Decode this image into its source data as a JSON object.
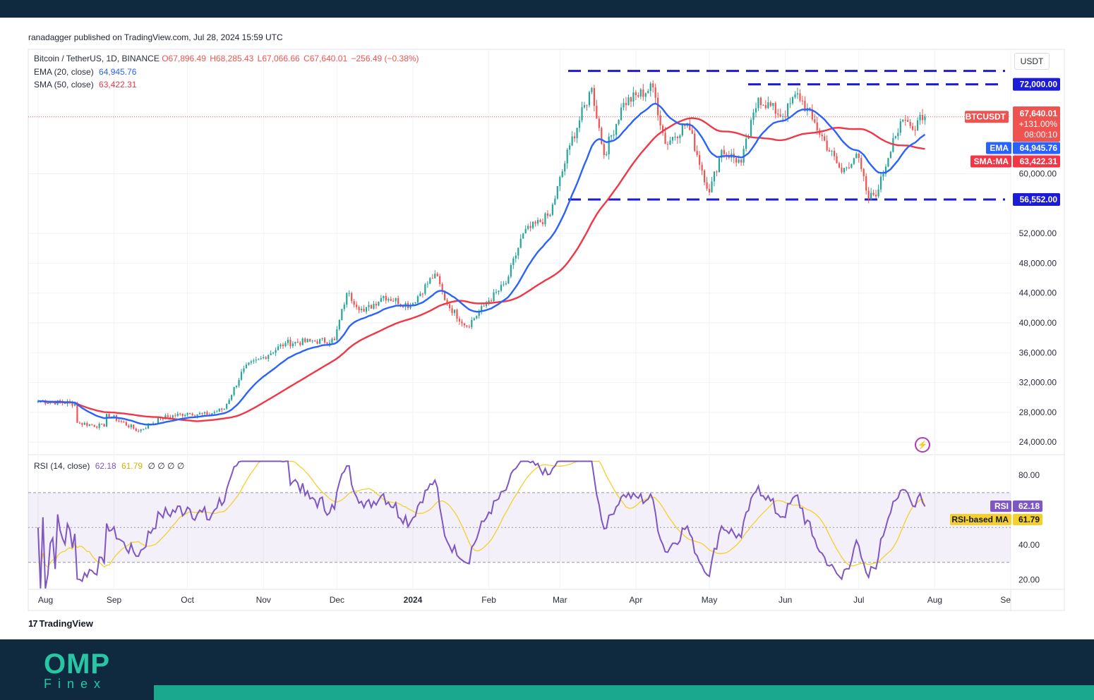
{
  "header": {
    "published": "ranadagger published on TradingView.com, Jul 28, 2024 15:59 UTC"
  },
  "legend": {
    "symbol": "Bitcoin / TetherUS, 1D, BINANCE",
    "open": "O67,896.49",
    "high": "H68,285.43",
    "low": "L67,066.66",
    "close": "C67,640.01",
    "change": "−256.49 (−0.38%)",
    "ema_label": "EMA (20, close)",
    "ema_value": "64,945.76",
    "sma_label": "SMA (50, close)",
    "sma_value": "63,422.31",
    "rsi_label": "RSI (14, close)",
    "rsi_value": "62.18",
    "rsi_ma_value": "61.79",
    "rsi_extra": "∅ ∅ ∅ ∅"
  },
  "price_axis": {
    "unit": "USDT",
    "symbol_tag": "BTCUSDT",
    "last_price": "67,640.01",
    "pct": "+131.00%",
    "countdown": "08:00:10",
    "ema_tag": "EMA",
    "ema_value": "64,945.76",
    "sma_tag": "SMA:MA",
    "sma_value": "63,422.31",
    "rsi_tag": "RSI",
    "rsi_value": "62.18",
    "rsi_ma_tag": "RSI-based MA",
    "rsi_ma_value": "61.79",
    "level_labels": [
      "72,000.00",
      "56,552.00"
    ]
  },
  "branding": {
    "tv": "TradingView",
    "tv_mark": "17",
    "brand": "OMP",
    "brand_sub": "Finex"
  },
  "colors": {
    "up": "#26a69a",
    "down": "#ef5350",
    "ema": "#2962ff",
    "sma": "#f23645",
    "rsi": "#7e57c2",
    "rsi_ma": "#f5d02a",
    "level": "#1b1bd8"
  },
  "chart_data": [
    {
      "type": "candlestick",
      "title": "Bitcoin / TetherUS, 1D, BINANCE",
      "x_tick_labels": [
        "Aug",
        "Sep",
        "Oct",
        "Nov",
        "Dec",
        "2024",
        "Feb",
        "Mar",
        "Apr",
        "May",
        "Jun",
        "Jul",
        "Aug",
        "Se"
      ],
      "y_tick_labels": [
        "60,000.00",
        "52,000.00",
        "48,000.00",
        "44,000.00",
        "40,000.00",
        "36,000.00",
        "32,000.00",
        "28,000.00",
        "24,000.00"
      ],
      "y_ticks": [
        60000,
        52000,
        48000,
        44000,
        40000,
        36000,
        32000,
        28000,
        24000
      ],
      "ylim": [
        22000,
        76000
      ],
      "grid": true,
      "horizontal_levels": [
        73800,
        72000,
        56552
      ],
      "close_anchors": [
        {
          "date": "2023-08-01",
          "close": 29500
        },
        {
          "date": "2023-08-16",
          "close": 29200
        },
        {
          "date": "2023-08-17",
          "close": 26600
        },
        {
          "date": "2023-08-28",
          "close": 26100
        },
        {
          "date": "2023-08-29",
          "close": 27800
        },
        {
          "date": "2023-09-11",
          "close": 25500
        },
        {
          "date": "2023-09-20",
          "close": 27200
        },
        {
          "date": "2023-10-01",
          "close": 27900
        },
        {
          "date": "2023-10-09",
          "close": 27700
        },
        {
          "date": "2023-10-16",
          "close": 28500
        },
        {
          "date": "2023-10-24",
          "close": 33900
        },
        {
          "date": "2023-11-01",
          "close": 35400
        },
        {
          "date": "2023-11-10",
          "close": 37300
        },
        {
          "date": "2023-11-20",
          "close": 37500
        },
        {
          "date": "2023-11-30",
          "close": 37700
        },
        {
          "date": "2023-12-05",
          "close": 44000
        },
        {
          "date": "2023-12-12",
          "close": 41500
        },
        {
          "date": "2023-12-20",
          "close": 43600
        },
        {
          "date": "2023-12-31",
          "close": 42300
        },
        {
          "date": "2024-01-10",
          "close": 46600
        },
        {
          "date": "2024-01-15",
          "close": 42500
        },
        {
          "date": "2024-01-23",
          "close": 39500
        },
        {
          "date": "2024-02-01",
          "close": 43000
        },
        {
          "date": "2024-02-08",
          "close": 45300
        },
        {
          "date": "2024-02-15",
          "close": 52000
        },
        {
          "date": "2024-02-26",
          "close": 54500
        },
        {
          "date": "2024-03-05",
          "close": 63800
        },
        {
          "date": "2024-03-14",
          "close": 71500
        },
        {
          "date": "2024-03-19",
          "close": 62500
        },
        {
          "date": "2024-03-27",
          "close": 69500
        },
        {
          "date": "2024-04-08",
          "close": 71600
        },
        {
          "date": "2024-04-13",
          "close": 64000
        },
        {
          "date": "2024-04-22",
          "close": 66800
        },
        {
          "date": "2024-05-01",
          "close": 57500
        },
        {
          "date": "2024-05-06",
          "close": 63200
        },
        {
          "date": "2024-05-14",
          "close": 61500
        },
        {
          "date": "2024-05-21",
          "close": 70200
        },
        {
          "date": "2024-05-31",
          "close": 67700
        },
        {
          "date": "2024-06-06",
          "close": 70800
        },
        {
          "date": "2024-06-12",
          "close": 67300
        },
        {
          "date": "2024-06-24",
          "close": 60200
        },
        {
          "date": "2024-06-30",
          "close": 62700
        },
        {
          "date": "2024-07-05",
          "close": 56600
        },
        {
          "date": "2024-07-09",
          "close": 57900
        },
        {
          "date": "2024-07-15",
          "close": 64800
        },
        {
          "date": "2024-07-20",
          "close": 67200
        },
        {
          "date": "2024-07-23",
          "close": 65900
        },
        {
          "date": "2024-07-26",
          "close": 67900
        },
        {
          "date": "2024-07-28",
          "close": 67640
        }
      ],
      "series": [
        {
          "name": "EMA (20, close)",
          "last": 64945.76
        },
        {
          "name": "SMA (50, close)",
          "last": 63422.31
        }
      ]
    },
    {
      "type": "line",
      "title": "RSI (14, close)",
      "y_tick_labels": [
        "80.00",
        "40.00",
        "20.00"
      ],
      "y_ticks": [
        80,
        40,
        20
      ],
      "ylim": [
        14,
        90
      ],
      "bands": [
        30,
        50,
        70
      ],
      "series": [
        {
          "name": "RSI",
          "last": 62.18
        },
        {
          "name": "RSI-based MA",
          "last": 61.79
        }
      ]
    }
  ]
}
